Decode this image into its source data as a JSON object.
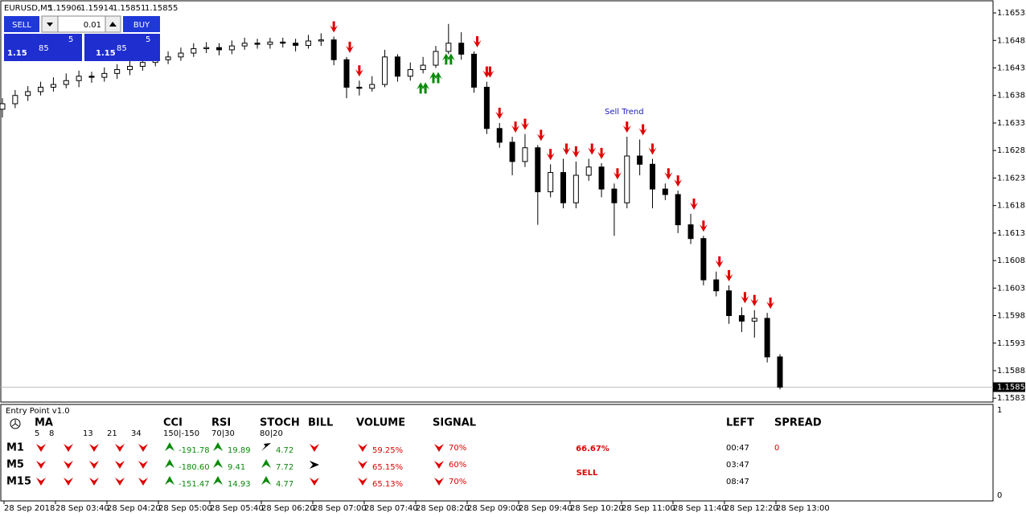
{
  "chart_data": {
    "type": "candlestick",
    "symbol": "EURUSD,M5",
    "ohlc_header": [
      1.15906,
      1.15914,
      1.15851,
      1.15855
    ],
    "annotation": "Sell Trend",
    "last_price": 1.15855,
    "ylim": [
      1.15828,
      1.16557
    ],
    "yticks": [
      1.16535,
      1.16485,
      1.16435,
      1.16385,
      1.16335,
      1.16285,
      1.16235,
      1.16185,
      1.16135,
      1.16085,
      1.16035,
      1.15985,
      1.15935,
      1.15885,
      1.15835
    ],
    "x_labels": [
      "28 Sep 2018",
      "28 Sep 03:40",
      "28 Sep 04:20",
      "28 Sep 05:00",
      "28 Sep 05:40",
      "28 Sep 06:20",
      "28 Sep 07:00",
      "28 Sep 07:40",
      "28 Sep 08:20",
      "28 Sep 09:00",
      "28 Sep 09:40",
      "28 Sep 10:20",
      "28 Sep 11:00",
      "28 Sep 11:40",
      "28 Sep 12:20",
      "28 Sep 13:00"
    ],
    "bull_color": "#ffffff",
    "bear_color": "#000000",
    "open": [
      1.1636,
      1.1637,
      1.16385,
      1.16392,
      1.164,
      1.16405,
      1.16412,
      1.1642,
      1.16418,
      1.16425,
      1.16432,
      1.16438,
      1.16445,
      1.1645,
      1.16455,
      1.16462,
      1.1647,
      1.16472,
      1.16468,
      1.16475,
      1.1648,
      1.16478,
      1.16482,
      1.1648,
      1.16476,
      1.16484,
      1.16486,
      1.1645,
      1.164,
      1.16398,
      1.16405,
      1.16455,
      1.1642,
      1.16432,
      1.1644,
      1.16465,
      1.1648,
      1.1646,
      1.164,
      1.16325,
      1.163,
      1.16265,
      1.1629,
      1.1621,
      1.16245,
      1.1619,
      1.1624,
      1.16255,
      1.16215,
      1.1619,
      1.16275,
      1.1626,
      1.16215,
      1.16205,
      1.1615,
      1.16125,
      1.1605,
      1.1603,
      1.15985,
      1.15975,
      1.1598,
      1.1591
    ],
    "high": [
      1.1638,
      1.16395,
      1.16402,
      1.1641,
      1.16418,
      1.16425,
      1.1643,
      1.16428,
      1.16436,
      1.16442,
      1.16448,
      1.16455,
      1.1646,
      1.16465,
      1.16472,
      1.1648,
      1.16482,
      1.1648,
      1.16485,
      1.1649,
      1.16488,
      1.1649,
      1.1649,
      1.16488,
      1.16495,
      1.16498,
      1.16492,
      1.16455,
      1.16412,
      1.1642,
      1.16468,
      1.1646,
      1.16445,
      1.16455,
      1.16475,
      1.16515,
      1.165,
      1.16465,
      1.1641,
      1.16335,
      1.1631,
      1.16315,
      1.16295,
      1.1626,
      1.1627,
      1.16265,
      1.1627,
      1.16262,
      1.16225,
      1.1631,
      1.16305,
      1.1627,
      1.16225,
      1.16212,
      1.1617,
      1.1613,
      1.16065,
      1.1604,
      1.16,
      1.15995,
      1.1599,
      1.15915
    ],
    "low": [
      1.16345,
      1.16362,
      1.16375,
      1.16385,
      1.16392,
      1.16398,
      1.164,
      1.16408,
      1.1641,
      1.16415,
      1.16422,
      1.1643,
      1.16438,
      1.16442,
      1.16448,
      1.16455,
      1.16462,
      1.16458,
      1.1646,
      1.16468,
      1.1647,
      1.1647,
      1.16472,
      1.16465,
      1.1647,
      1.16475,
      1.1644,
      1.1638,
      1.16385,
      1.16392,
      1.164,
      1.1641,
      1.16412,
      1.16425,
      1.16435,
      1.1646,
      1.1645,
      1.1639,
      1.16315,
      1.1629,
      1.1624,
      1.16255,
      1.1615,
      1.162,
      1.1618,
      1.1618,
      1.1623,
      1.162,
      1.1613,
      1.1618,
      1.1624,
      1.1618,
      1.16195,
      1.16135,
      1.16115,
      1.1604,
      1.1602,
      1.1597,
      1.15955,
      1.15945,
      1.159,
      1.15851
    ],
    "close": [
      1.1637,
      1.16385,
      1.16392,
      1.164,
      1.16405,
      1.16412,
      1.1642,
      1.16418,
      1.16425,
      1.16432,
      1.16438,
      1.16445,
      1.1645,
      1.16455,
      1.16462,
      1.1647,
      1.16472,
      1.16468,
      1.16475,
      1.1648,
      1.16478,
      1.16482,
      1.1648,
      1.16476,
      1.16484,
      1.16486,
      1.1645,
      1.164,
      1.16398,
      1.16405,
      1.16455,
      1.1642,
      1.16432,
      1.1644,
      1.16465,
      1.1648,
      1.1646,
      1.164,
      1.16325,
      1.163,
      1.16265,
      1.1629,
      1.1621,
      1.16245,
      1.1619,
      1.1624,
      1.16255,
      1.16215,
      1.1619,
      1.16275,
      1.1626,
      1.16215,
      1.16205,
      1.1615,
      1.16125,
      1.1605,
      1.1603,
      1.15985,
      1.15975,
      1.1598,
      1.1591,
      1.15855
    ]
  },
  "trade_panel": {
    "sell": "SELL",
    "lot": "0.01",
    "buy": "BUY",
    "bid": {
      "big": "1.15",
      "pips": "85",
      "point": "5"
    },
    "ask": {
      "big": "1.15",
      "pips": "85",
      "point": "5"
    }
  },
  "indicator": {
    "title": "Entry Point v1.0",
    "ma": {
      "label": "MA",
      "periods": [
        "5",
        "8",
        "13",
        "21",
        "34"
      ]
    },
    "columns": [
      {
        "label": "CCI",
        "sub": "150|-150"
      },
      {
        "label": "RSI",
        "sub": "70|30"
      },
      {
        "label": "STOCH",
        "sub": "80|20"
      },
      {
        "label": "BILL"
      },
      {
        "label": "VOLUME"
      },
      {
        "label": "SIGNAL"
      }
    ],
    "left_label": "LEFT",
    "spread_label": "SPREAD",
    "rows": [
      {
        "tf": "M1",
        "cci": "-191.78",
        "rsi": "19.89",
        "stoch": "4.72",
        "volume": "59.25%",
        "signal": "70%",
        "left": "00:47",
        "spread": "0"
      },
      {
        "tf": "M5",
        "cci": "-180.60",
        "rsi": "9.41",
        "stoch": "7.72",
        "volume": "65.15%",
        "signal": "60%",
        "left": "03:47"
      },
      {
        "tf": "M15",
        "cci": "-151.47",
        "rsi": "14.93",
        "stoch": "4.77",
        "volume": "65.13%",
        "signal": "70%",
        "left": "08:47"
      }
    ],
    "percent": "66.67%",
    "verdict": "SELL",
    "sub_axis": [
      "1",
      "0"
    ]
  }
}
